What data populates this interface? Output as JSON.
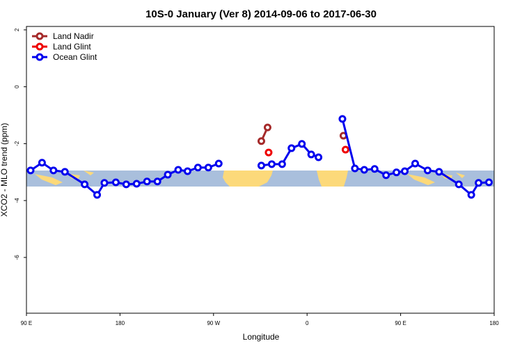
{
  "chart_data": {
    "type": "line",
    "title": "10S-0 January (Ver 8)   2014-09-06 to 2017-06-30",
    "xlabel": "Longitude",
    "ylabel": "XCO2 - MLO trend (ppm)",
    "xlim": [
      90,
      540
    ],
    "ylim": [
      -7.96,
      2.12
    ],
    "xticks": [
      {
        "value": 90,
        "label": "90 E"
      },
      {
        "value": 180,
        "label": "180"
      },
      {
        "value": 270,
        "label": "90 W"
      },
      {
        "value": 360,
        "label": "0"
      },
      {
        "value": 450,
        "label": "90 E"
      },
      {
        "value": 540,
        "label": "180"
      }
    ],
    "yticks": [
      2,
      0,
      -2,
      -4,
      -6
    ],
    "legend": "top-left",
    "series": [
      {
        "name": "Land Nadir",
        "color": "#a52a2a",
        "x": [
          316,
          322,
          null,
          395
        ],
        "values": [
          -1.91,
          -1.43,
          null,
          -1.72
        ]
      },
      {
        "name": "Land Glint",
        "color": "#ee0000",
        "x": [
          323,
          null,
          397
        ],
        "values": [
          -2.31,
          null,
          -2.21
        ]
      },
      {
        "name": "Ocean Glint",
        "color": "#0000ee",
        "x": [
          94,
          105,
          116,
          127,
          146,
          158,
          165,
          176,
          186,
          196,
          206,
          216,
          226,
          236,
          245,
          255,
          265,
          275,
          null,
          316,
          326,
          336,
          345,
          355,
          364,
          371,
          null,
          394,
          406,
          415,
          425,
          436,
          446,
          454,
          464,
          476,
          487,
          506,
          518,
          525,
          535
        ],
        "values": [
          -2.94,
          -2.67,
          -2.94,
          -2.99,
          -3.43,
          -3.8,
          -3.38,
          -3.36,
          -3.43,
          -3.41,
          -3.33,
          -3.33,
          -3.09,
          -2.92,
          -2.97,
          -2.84,
          -2.84,
          -2.7,
          null,
          -2.77,
          -2.72,
          -2.72,
          -2.16,
          -2.01,
          -2.38,
          -2.48,
          null,
          -1.13,
          -2.87,
          -2.92,
          -2.89,
          -3.11,
          -3.01,
          -2.97,
          -2.7,
          -2.94,
          -2.99,
          -3.43,
          -3.8,
          -3.38,
          -3.36
        ]
      }
    ]
  }
}
